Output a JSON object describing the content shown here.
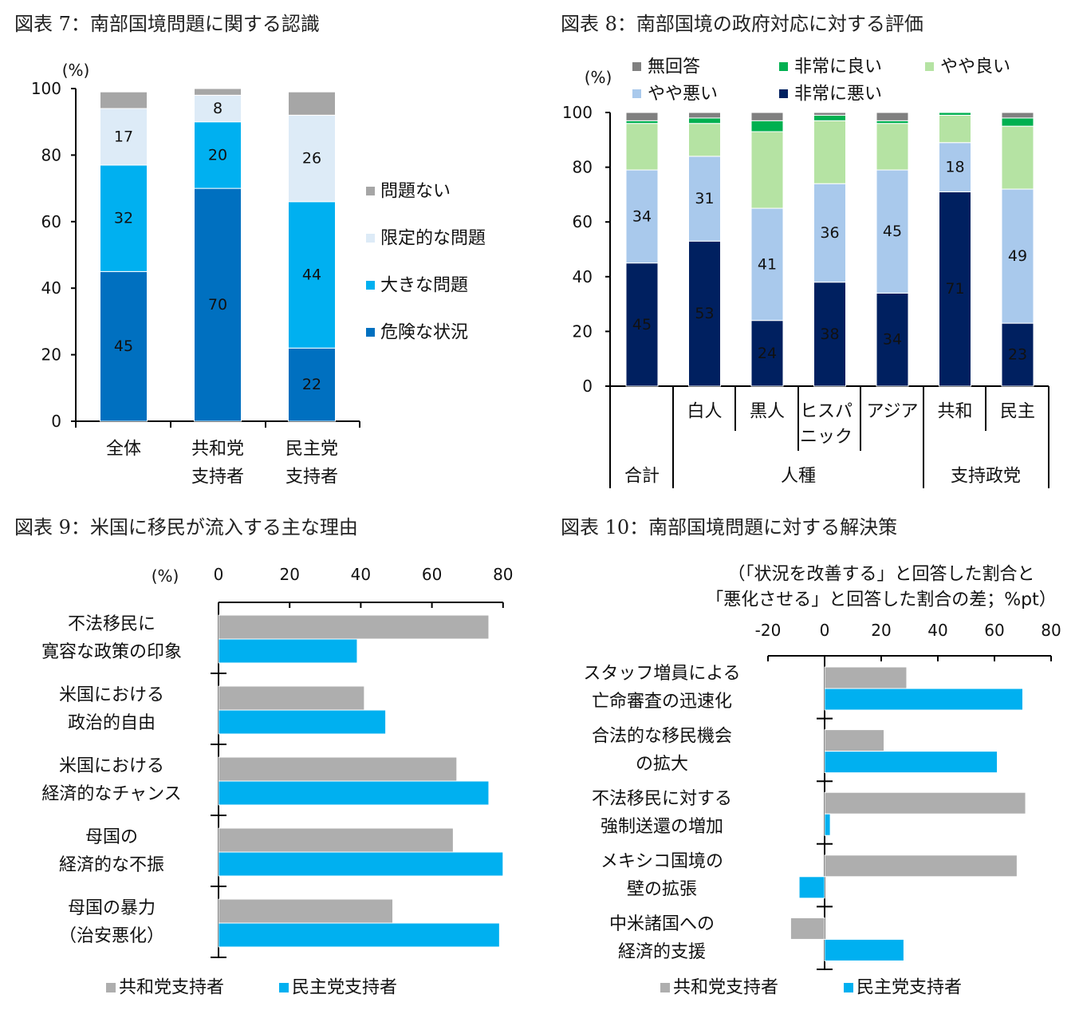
{
  "chart_data": [
    {
      "type": "bar",
      "stacked": true,
      "title": "図表 7：南部国境問題に関する認識",
      "unit_label": "(%)",
      "ylim": [
        0,
        100
      ],
      "yticks": [
        "0",
        "20",
        "40",
        "60",
        "80",
        "100"
      ],
      "categories": [
        [
          "全体"
        ],
        [
          "共和党",
          "支持者"
        ],
        [
          "民主党",
          "支持者"
        ]
      ],
      "series": [
        {
          "name": "危険な状況",
          "color": "#0070c0",
          "label_color": "#ffffff",
          "values": [
            45,
            70,
            22
          ],
          "labels": [
            "45",
            "70",
            "22"
          ]
        },
        {
          "name": "大きな問題",
          "color": "#00b0f0",
          "label_color": "#404040",
          "values": [
            32,
            20,
            44
          ],
          "labels": [
            "32",
            "20",
            "44"
          ]
        },
        {
          "name": "限定的な問題",
          "color": "#ddebf7",
          "label_color": "#404040",
          "values": [
            17,
            8,
            26
          ],
          "labels": [
            "17",
            "8",
            "26"
          ]
        },
        {
          "name": "問題ない",
          "color": "#a6a6a6",
          "label_color": "#404040",
          "values": [
            5,
            2,
            7
          ],
          "labels": null
        }
      ],
      "legend_order": [
        3,
        2,
        1,
        0
      ]
    },
    {
      "type": "bar",
      "stacked": true,
      "title": "図表 8：南部国境の政府対応に対する評価",
      "unit_label": "(%)",
      "ylim": [
        0,
        100
      ],
      "yticks": [
        "0",
        "20",
        "40",
        "60",
        "80",
        "100"
      ],
      "categories": [
        [
          ""
        ],
        [
          "白人"
        ],
        [
          "黒人"
        ],
        [
          "ヒスパ",
          "ニック"
        ],
        [
          "アジア"
        ],
        [
          "共和"
        ],
        [
          "民主"
        ]
      ],
      "groups": [
        "合計",
        "人種",
        "支持政党"
      ],
      "series": [
        {
          "name": "非常に悪い",
          "color": "#002060",
          "label_color": "#ffffff",
          "values": [
            45,
            53,
            24,
            38,
            34,
            71,
            23
          ],
          "labels": [
            "45",
            "53",
            "24",
            "38",
            "34",
            "71",
            "23"
          ]
        },
        {
          "name": "やや悪い",
          "color": "#a9c9ec",
          "label_color": "#404040",
          "values": [
            34,
            31,
            41,
            36,
            45,
            18,
            49
          ],
          "labels": [
            "34",
            "31",
            "41",
            "36",
            "45",
            "18",
            "49"
          ]
        },
        {
          "name": "やや良い",
          "color": "#b5e3a3",
          "label_color": "#404040",
          "values": [
            17,
            12,
            28,
            23,
            17,
            10,
            23
          ],
          "labels": null
        },
        {
          "name": "非常に良い",
          "color": "#00b050",
          "label_color": "#404040",
          "values": [
            1,
            2,
            4,
            2,
            1,
            1,
            3
          ],
          "labels": null
        },
        {
          "name": "無回答",
          "color": "#808080",
          "label_color": "#404040",
          "values": [
            3,
            2,
            3,
            1,
            3,
            0,
            2
          ],
          "labels": null
        }
      ],
      "legend_order": [
        4,
        3,
        2,
        1,
        0
      ]
    },
    {
      "type": "bar",
      "orientation": "horizontal",
      "title": "図表 9：米国に移民が流入する主な理由",
      "unit_label": "(%)",
      "xlim": [
        0,
        80
      ],
      "xticks": [
        "0",
        "20",
        "40",
        "60",
        "80"
      ],
      "categories": [
        [
          "不法移民に",
          "寛容な政策の印象"
        ],
        [
          "米国における",
          "政治的自由"
        ],
        [
          "米国における",
          "経済的なチャンス"
        ],
        [
          "母国の",
          "経済的な不振"
        ],
        [
          "母国の暴力",
          "（治安悪化）"
        ]
      ],
      "series": [
        {
          "name": "共和党支持者",
          "color": "#aeaeae",
          "values": [
            76,
            41,
            67,
            66,
            49
          ]
        },
        {
          "name": "民主党支持者",
          "color": "#00b0f0",
          "values": [
            39,
            47,
            76,
            80,
            79
          ]
        }
      ]
    },
    {
      "type": "bar",
      "orientation": "horizontal",
      "title": "図表 10：南部国境問題に対する解決策",
      "subtitle": [
        "（「状況を改善する」と回答した割合と",
        "「悪化させる」と回答した割合の差；%pt）"
      ],
      "xlim": [
        -20,
        80
      ],
      "xticks": [
        "-20",
        "0",
        "20",
        "40",
        "60",
        "80"
      ],
      "categories": [
        [
          "スタッフ増員による",
          "亡命審査の迅速化"
        ],
        [
          "合法的な移民機会",
          "の拡大"
        ],
        [
          "不法移民に対する",
          "強制送還の増加"
        ],
        [
          "メキシコ国境の",
          "壁の拡張"
        ],
        [
          "中米諸国への",
          "経済的支援"
        ]
      ],
      "series": [
        {
          "name": "共和党支持者",
          "color": "#aeaeae",
          "values": [
            29,
            21,
            71,
            68,
            -12
          ]
        },
        {
          "name": "民主党支持者",
          "color": "#00b0f0",
          "values": [
            70,
            61,
            2,
            -9,
            28
          ]
        }
      ]
    }
  ]
}
